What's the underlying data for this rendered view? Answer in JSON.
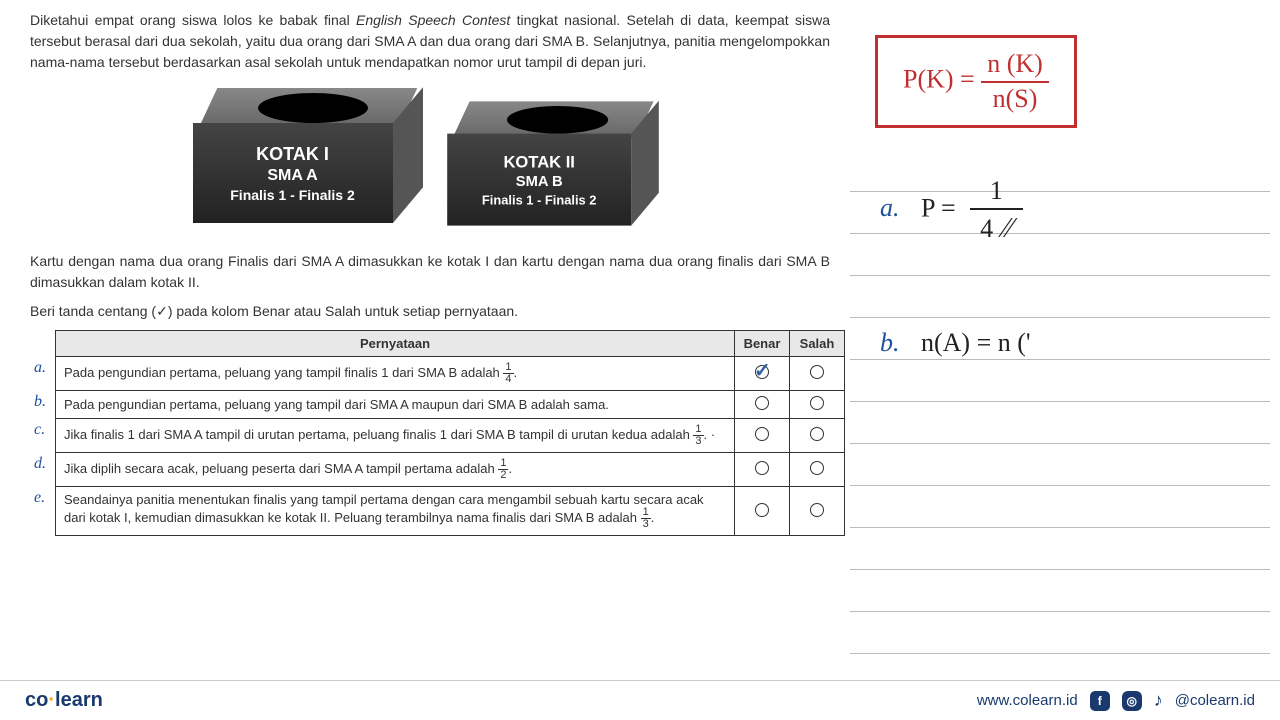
{
  "intro": "Diketahui empat orang siswa lolos ke babak final English Speech Contest tingkat nasional. Setelah di data, keempat siswa tersebut berasal dari dua sekolah, yaitu dua orang dari SMA A dan dua orang dari SMA B. Selanjutnya, panitia mengelompokkan nama-nama tersebut berdasarkan asal sekolah untuk mendapatkan nomor urut tampil di depan juri.",
  "box1": {
    "title": "KOTAK I",
    "school": "SMA A",
    "finalis": "Finalis 1 - Finalis 2"
  },
  "box2": {
    "title": "KOTAK II",
    "school": "SMA B",
    "finalis": "Finalis 1 - Finalis 2"
  },
  "middle": "Kartu dengan nama dua orang Finalis dari SMA A dimasukkan ke kotak I dan kartu dengan nama dua orang finalis dari SMA B dimasukkan dalam kotak II.",
  "instruction": "Beri tanda centang (✓) pada kolom Benar atau Salah untuk setiap pernyataan.",
  "table": {
    "headers": {
      "statement": "Pernyataan",
      "true": "Benar",
      "false": "Salah"
    },
    "rows": [
      {
        "label": "a.",
        "text": "Pada pengundian pertama, peluang yang tampil finalis 1 dari SMA B adalah ",
        "frac_n": "1",
        "frac_d": "4",
        "tail": ".",
        "checked_true": true
      },
      {
        "label": "b.",
        "text": "Pada pengundian pertama, peluang yang tampil dari SMA A maupun dari SMA B adalah sama.",
        "frac_n": "",
        "frac_d": "",
        "tail": ""
      },
      {
        "label": "c.",
        "text": "Jika finalis 1 dari SMA A tampil di urutan pertama, peluang finalis 1 dari SMA B tampil di urutan kedua adalah ",
        "frac_n": "1",
        "frac_d": "3",
        "tail": ".  ·"
      },
      {
        "label": "d.",
        "text": "Jika diplih secara acak, peluang peserta dari SMA A tampil pertama adalah ",
        "frac_n": "1",
        "frac_d": "2",
        "tail": "."
      },
      {
        "label": "e.",
        "text": "Seandainya panitia menentukan finalis yang tampil pertama dengan cara mengambil sebuah kartu secara acak dari kotak I, kemudian dimasukkan ke kotak II. Peluang terambilnya nama finalis dari SMA B adalah ",
        "frac_n": "1",
        "frac_d": "3",
        "tail": "."
      }
    ]
  },
  "notes": {
    "formula_left": "P(K) =",
    "formula_num": "n (K)",
    "formula_den": "n(S)",
    "a_label": "a.",
    "a_eq": "P =",
    "a_num": "1",
    "a_den": "4",
    "a_slash": "⁄⁄",
    "b_label": "b.",
    "b_eq": "n(A) = n ('"
  },
  "footer": {
    "logo_pre": "co",
    "logo_dot": "·",
    "logo_post": "learn",
    "url": "www.colearn.id",
    "handle": "@colearn.id"
  }
}
